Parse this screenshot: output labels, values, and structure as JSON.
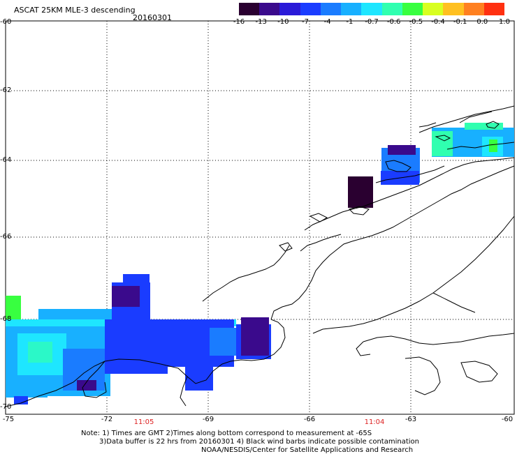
{
  "header": {
    "title": "ASCAT 25KM MLE-3 descending",
    "date": "20160301"
  },
  "colorbar": {
    "colors": [
      "#2a0030",
      "#3a0a8c",
      "#2a1ad8",
      "#1a3cff",
      "#1a7cff",
      "#18b0ff",
      "#1ee6ff",
      "#30ffb0",
      "#38ff40",
      "#d8ff20",
      "#ffc020",
      "#ff8020",
      "#ff3010"
    ],
    "labels": [
      "-16",
      "-13",
      "-10",
      "-7",
      "-4",
      "-1",
      "-0.7",
      "-0.6",
      "-0.5",
      "-0.4",
      "-0.1",
      "0.0",
      "1.0"
    ]
  },
  "axes": {
    "y_labels": [
      "-60",
      "-62",
      "-64",
      "-66",
      "-68",
      "-70"
    ],
    "x_labels": [
      "-75",
      "-72",
      "-69",
      "-66",
      "-63",
      "-60"
    ]
  },
  "times": [
    "11:05",
    "11:04"
  ],
  "notes": {
    "line1": "Note: 1) Times are GMT 2)Times along bottom correspond to measurement at -65S",
    "line2": "3)Data buffer is 22 hrs from 20160301 4) Black wind barbs indicate possible contamination",
    "line3": "NOAA/NESDIS/Center for Satellite Applications and Research"
  }
}
